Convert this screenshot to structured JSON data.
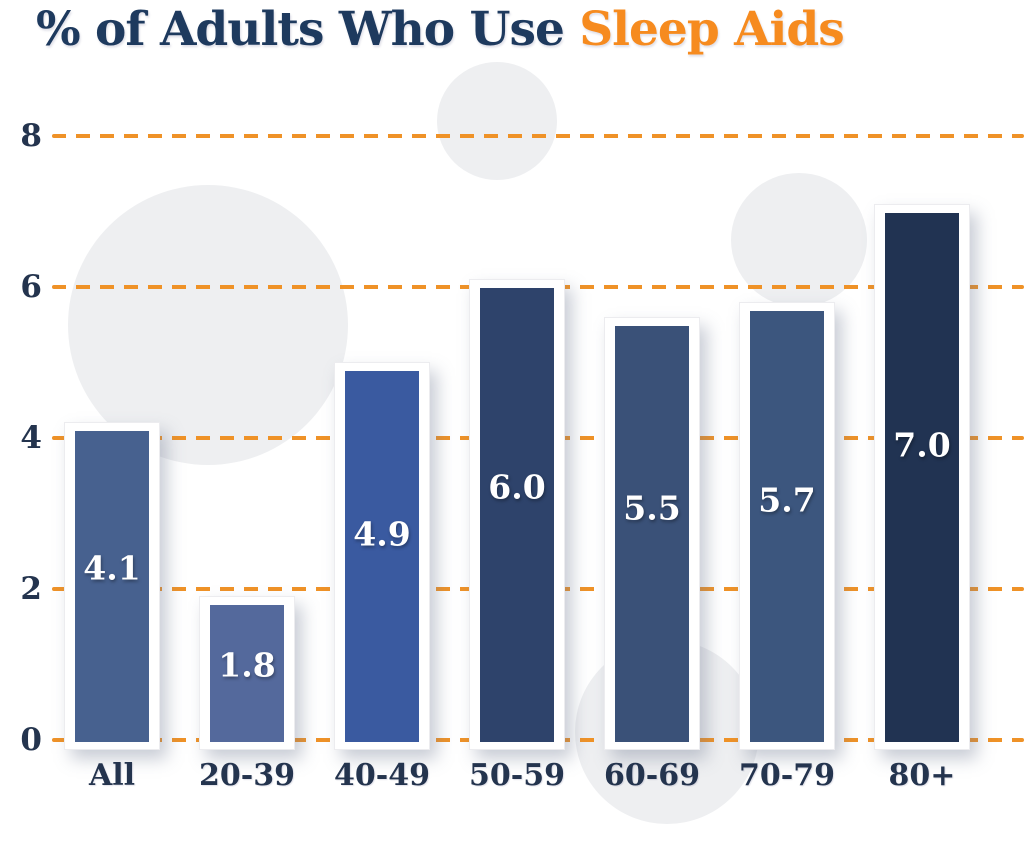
{
  "title": {
    "main": "% of Adults Who Use ",
    "highlight": "Sleep Aids",
    "main_color": "#1e3a5e",
    "highlight_color": "#f68b1f"
  },
  "chart_data": {
    "type": "bar",
    "title": "% of Adults Who Use Sleep Aids",
    "categories": [
      "All",
      "20-39",
      "40-49",
      "50-59",
      "60-69",
      "70-79",
      "80+"
    ],
    "values": [
      4.1,
      1.8,
      4.9,
      6.0,
      5.5,
      5.7,
      7.0
    ],
    "value_labels": [
      "4.1",
      "1.8",
      "4.9",
      "6.0",
      "5.5",
      "5.7",
      "7.0"
    ],
    "bar_colors": [
      "#47618f",
      "#54699c",
      "#3a5aa0",
      "#2e436b",
      "#3a5178",
      "#3c567e",
      "#213352"
    ],
    "xlabel": "",
    "ylabel": "",
    "ylim": [
      0,
      8
    ],
    "yticks": [
      0,
      2,
      4,
      6,
      8
    ],
    "grid": true,
    "gridline_color": "#ef9227",
    "gridline_style": "dashed",
    "axis_label_color": "#24344e",
    "bar_value_label_color": "#ffffff",
    "legend": false,
    "background_color": "#ffffff"
  }
}
